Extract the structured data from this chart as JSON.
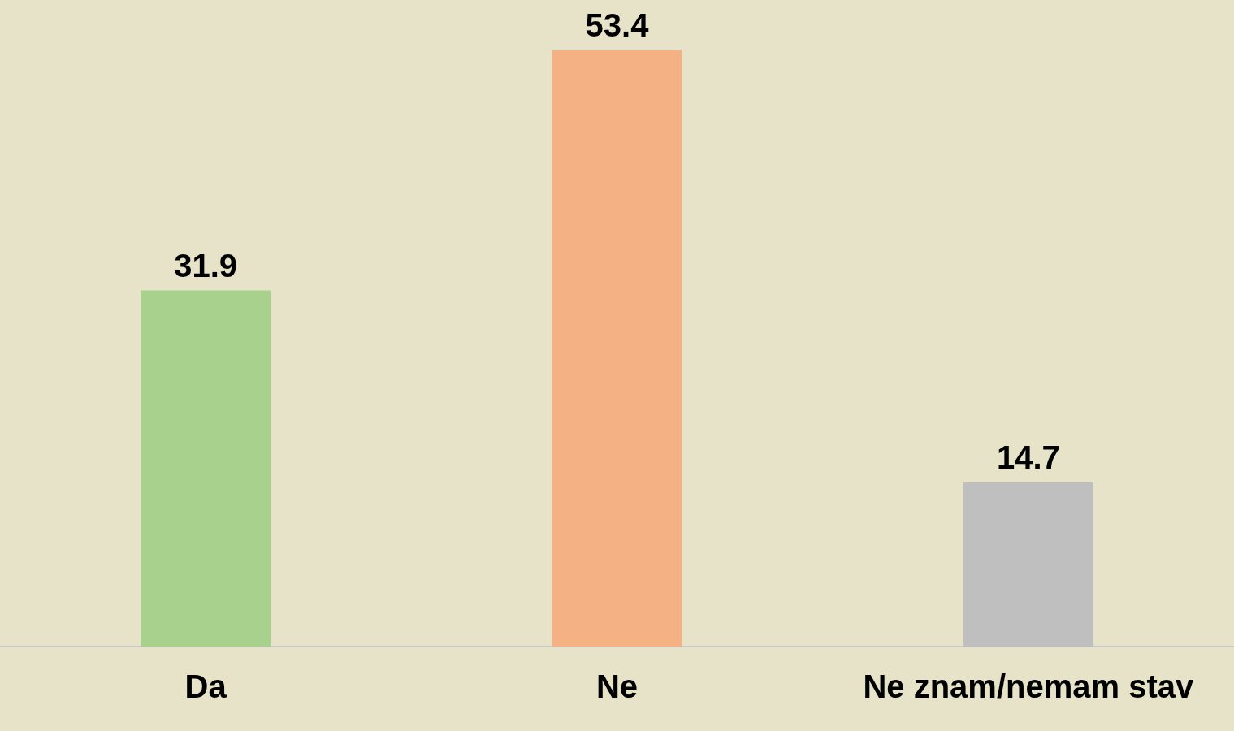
{
  "chart_data": {
    "type": "bar",
    "categories": [
      "Da",
      "Ne",
      "Ne znam/nemam stav"
    ],
    "values": [
      31.9,
      53.4,
      14.7
    ],
    "colors": [
      "#a9d18e",
      "#f4b183",
      "#bfbfbf"
    ],
    "data_labels": true,
    "grid": false,
    "legend": false
  }
}
